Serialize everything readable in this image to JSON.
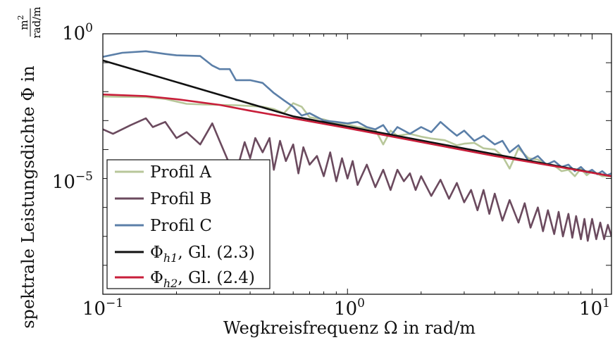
{
  "chart_data": {
    "type": "line",
    "xlabel": "Wegkreisfrequenz Ω in rad/m",
    "ylabel_main": "spektrale Leistungsdichte Φ in",
    "ylabel_unit_num": "m",
    "ylabel_unit_num_exp": "2",
    "ylabel_unit_den": "rad/m",
    "x_scale": "log",
    "y_scale": "log",
    "xlim": [
      0.1,
      12
    ],
    "ylim": [
      1e-09,
      1.0
    ],
    "x_ticks": [
      {
        "value": 0.1,
        "base": "10",
        "exp": "−1"
      },
      {
        "value": 1,
        "base": "10",
        "exp": "0"
      },
      {
        "value": 10,
        "base": "10",
        "exp": "1"
      }
    ],
    "y_ticks": [
      {
        "value": 1.0,
        "base": "10",
        "exp": "0"
      },
      {
        "value": 1e-05,
        "base": "10",
        "exp": "−5"
      }
    ],
    "grid": false,
    "legend_position": "bottom-left",
    "series": [
      {
        "name": "Profil A",
        "legend_label": "Profil A",
        "color": "#b8c79a",
        "points": [
          [
            0.1,
            0.0068
          ],
          [
            0.12,
            0.0066
          ],
          [
            0.15,
            0.0065
          ],
          [
            0.18,
            0.0056
          ],
          [
            0.22,
            0.0038
          ],
          [
            0.26,
            0.0036
          ],
          [
            0.3,
            0.0035
          ],
          [
            0.35,
            0.0034
          ],
          [
            0.4,
            0.0032
          ],
          [
            0.45,
            0.003
          ],
          [
            0.5,
            0.0025
          ],
          [
            0.55,
            0.0018
          ],
          [
            0.6,
            0.004
          ],
          [
            0.65,
            0.003
          ],
          [
            0.7,
            0.0013
          ],
          [
            0.8,
            0.0011
          ],
          [
            0.9,
            0.0008
          ],
          [
            1.0,
            0.00075
          ],
          [
            1.1,
            0.0006
          ],
          [
            1.2,
            0.00055
          ],
          [
            1.3,
            0.00048
          ],
          [
            1.4,
            0.00015
          ],
          [
            1.5,
            0.00045
          ],
          [
            1.6,
            0.0003
          ],
          [
            1.8,
            0.00035
          ],
          [
            2.0,
            0.00028
          ],
          [
            2.2,
            0.00024
          ],
          [
            2.5,
            0.00021
          ],
          [
            2.8,
            0.00014
          ],
          [
            3.0,
            0.00016
          ],
          [
            3.3,
            0.00017
          ],
          [
            3.6,
            0.00011
          ],
          [
            4.0,
            0.0001
          ],
          [
            4.3,
            6e-05
          ],
          [
            4.6,
            2.2e-05
          ],
          [
            5.0,
            0.00011
          ],
          [
            5.5,
            5e-05
          ],
          [
            6.0,
            4.5e-05
          ],
          [
            6.5,
            3e-05
          ],
          [
            7.0,
            2.8e-05
          ],
          [
            7.5,
            1.8e-05
          ],
          [
            8.0,
            2e-05
          ],
          [
            8.5,
            1.2e-05
          ],
          [
            9.0,
            2.2e-05
          ],
          [
            9.5,
            1.3e-05
          ],
          [
            10.0,
            1.8e-05
          ],
          [
            11.0,
            1.2e-05
          ],
          [
            12.0,
            1.2e-05
          ]
        ]
      },
      {
        "name": "Profil B",
        "legend_label": "Profil B",
        "color": "#6b4a5e",
        "points": [
          [
            0.1,
            0.0005
          ],
          [
            0.11,
            0.00035
          ],
          [
            0.13,
            0.0007
          ],
          [
            0.15,
            0.0012
          ],
          [
            0.16,
            0.0006
          ],
          [
            0.18,
            0.0009
          ],
          [
            0.2,
            0.00025
          ],
          [
            0.22,
            0.0004
          ],
          [
            0.25,
            0.00015
          ],
          [
            0.28,
            0.0008
          ],
          [
            0.3,
            0.0002
          ],
          [
            0.33,
            3e-05
          ],
          [
            0.35,
            1.5e-05
          ],
          [
            0.38,
            0.00018
          ],
          [
            0.4,
            5e-05
          ],
          [
            0.42,
            0.00025
          ],
          [
            0.45,
            8e-05
          ],
          [
            0.48,
            0.00025
          ],
          [
            0.5,
            2e-05
          ],
          [
            0.53,
            0.0002
          ],
          [
            0.56,
            4e-05
          ],
          [
            0.6,
            0.00015
          ],
          [
            0.63,
            1.5e-05
          ],
          [
            0.66,
            0.00012
          ],
          [
            0.7,
            3e-05
          ],
          [
            0.75,
            6e-05
          ],
          [
            0.8,
            1.2e-05
          ],
          [
            0.85,
            8e-05
          ],
          [
            0.9,
            8e-06
          ],
          [
            0.95,
            5e-05
          ],
          [
            1.0,
            1e-05
          ],
          [
            1.05,
            4e-05
          ],
          [
            1.1,
            6e-06
          ],
          [
            1.2,
            3e-05
          ],
          [
            1.3,
            5e-06
          ],
          [
            1.4,
            2e-05
          ],
          [
            1.5,
            4e-06
          ],
          [
            1.6,
            2e-05
          ],
          [
            1.7,
            8e-06
          ],
          [
            1.8,
            1.5e-05
          ],
          [
            1.9,
            4e-06
          ],
          [
            2.0,
            1.2e-05
          ],
          [
            2.2,
            2.5e-06
          ],
          [
            2.4,
            9e-06
          ],
          [
            2.6,
            2e-06
          ],
          [
            2.8,
            7e-06
          ],
          [
            3.0,
            1.5e-06
          ],
          [
            3.2,
            4e-06
          ],
          [
            3.4,
            8e-07
          ],
          [
            3.6,
            4e-06
          ],
          [
            3.8,
            6e-07
          ],
          [
            4.0,
            3e-06
          ],
          [
            4.3,
            3.5e-07
          ],
          [
            4.6,
            1.8e-06
          ],
          [
            5.0,
            3e-07
          ],
          [
            5.3,
            1.4e-06
          ],
          [
            5.6,
            2e-07
          ],
          [
            6.0,
            1e-06
          ],
          [
            6.3,
            1.5e-07
          ],
          [
            6.6,
            8e-07
          ],
          [
            7.0,
            1.2e-07
          ],
          [
            7.3,
            7e-07
          ],
          [
            7.6,
            1e-07
          ],
          [
            8.0,
            6e-07
          ],
          [
            8.3,
            9e-08
          ],
          [
            8.6,
            5e-07
          ],
          [
            9.0,
            8e-08
          ],
          [
            9.3,
            4e-07
          ],
          [
            9.6,
            7e-08
          ],
          [
            10.0,
            4e-07
          ],
          [
            10.4,
            8e-08
          ],
          [
            10.8,
            3e-07
          ],
          [
            11.2,
            8e-08
          ],
          [
            11.6,
            2.5e-07
          ],
          [
            12.0,
            1e-07
          ]
        ]
      },
      {
        "name": "Profil C",
        "legend_label": "Profil C",
        "color": "#5b7fa8",
        "points": [
          [
            0.1,
            0.16
          ],
          [
            0.12,
            0.22
          ],
          [
            0.15,
            0.25
          ],
          [
            0.18,
            0.2
          ],
          [
            0.2,
            0.18
          ],
          [
            0.25,
            0.17
          ],
          [
            0.28,
            0.08
          ],
          [
            0.3,
            0.06
          ],
          [
            0.33,
            0.06
          ],
          [
            0.35,
            0.025
          ],
          [
            0.4,
            0.025
          ],
          [
            0.45,
            0.02
          ],
          [
            0.5,
            0.009
          ],
          [
            0.55,
            0.005
          ],
          [
            0.6,
            0.003
          ],
          [
            0.65,
            0.0015
          ],
          [
            0.7,
            0.0018
          ],
          [
            0.8,
            0.001
          ],
          [
            0.9,
            0.0009
          ],
          [
            1.0,
            0.0008
          ],
          [
            1.1,
            0.0009
          ],
          [
            1.2,
            0.0006
          ],
          [
            1.3,
            0.0005
          ],
          [
            1.4,
            0.0007
          ],
          [
            1.5,
            0.0003
          ],
          [
            1.6,
            0.0006
          ],
          [
            1.8,
            0.00035
          ],
          [
            2.0,
            0.0006
          ],
          [
            2.2,
            0.0004
          ],
          [
            2.4,
            0.0009
          ],
          [
            2.6,
            0.0005
          ],
          [
            2.8,
            0.0003
          ],
          [
            3.0,
            0.00045
          ],
          [
            3.3,
            0.0002
          ],
          [
            3.6,
            0.0003
          ],
          [
            4.0,
            0.00015
          ],
          [
            4.3,
            0.0002
          ],
          [
            4.6,
            8e-05
          ],
          [
            5.0,
            0.00014
          ],
          [
            5.5,
            4e-05
          ],
          [
            6.0,
            6e-05
          ],
          [
            6.5,
            3e-05
          ],
          [
            7.0,
            4e-05
          ],
          [
            7.5,
            2.5e-05
          ],
          [
            8.0,
            3e-05
          ],
          [
            8.5,
            1.8e-05
          ],
          [
            9.0,
            2.5e-05
          ],
          [
            9.5,
            1.6e-05
          ],
          [
            10.0,
            2e-05
          ],
          [
            10.5,
            1.4e-05
          ],
          [
            11.0,
            1.8e-05
          ],
          [
            11.5,
            1.3e-05
          ],
          [
            12.0,
            1.5e-05
          ]
        ]
      },
      {
        "name": "Φh1, Gl. (2.3)",
        "legend_label_main": "Φ",
        "legend_label_sub": "h1",
        "legend_label_rest": ", Gl. (2.3)",
        "color": "#111111",
        "points": [
          [
            0.1,
            0.12
          ],
          [
            0.6,
            0.0014
          ],
          [
            12.0,
            1.2e-05
          ]
        ]
      },
      {
        "name": "Φh2, Gl. (2.4)",
        "legend_label_main": "Φ",
        "legend_label_sub": "h2",
        "legend_label_rest": ", Gl. (2.4)",
        "color": "#c81e3a",
        "points": [
          [
            0.1,
            0.008
          ],
          [
            0.15,
            0.007
          ],
          [
            0.2,
            0.0055
          ],
          [
            0.3,
            0.0035
          ],
          [
            0.4,
            0.0022
          ],
          [
            0.6,
            0.0012
          ],
          [
            1.0,
            0.00055
          ],
          [
            2.0,
            0.00018
          ],
          [
            4.0,
            6e-05
          ],
          [
            8.0,
            2.2e-05
          ],
          [
            12.0,
            1.2e-05
          ]
        ]
      }
    ]
  }
}
